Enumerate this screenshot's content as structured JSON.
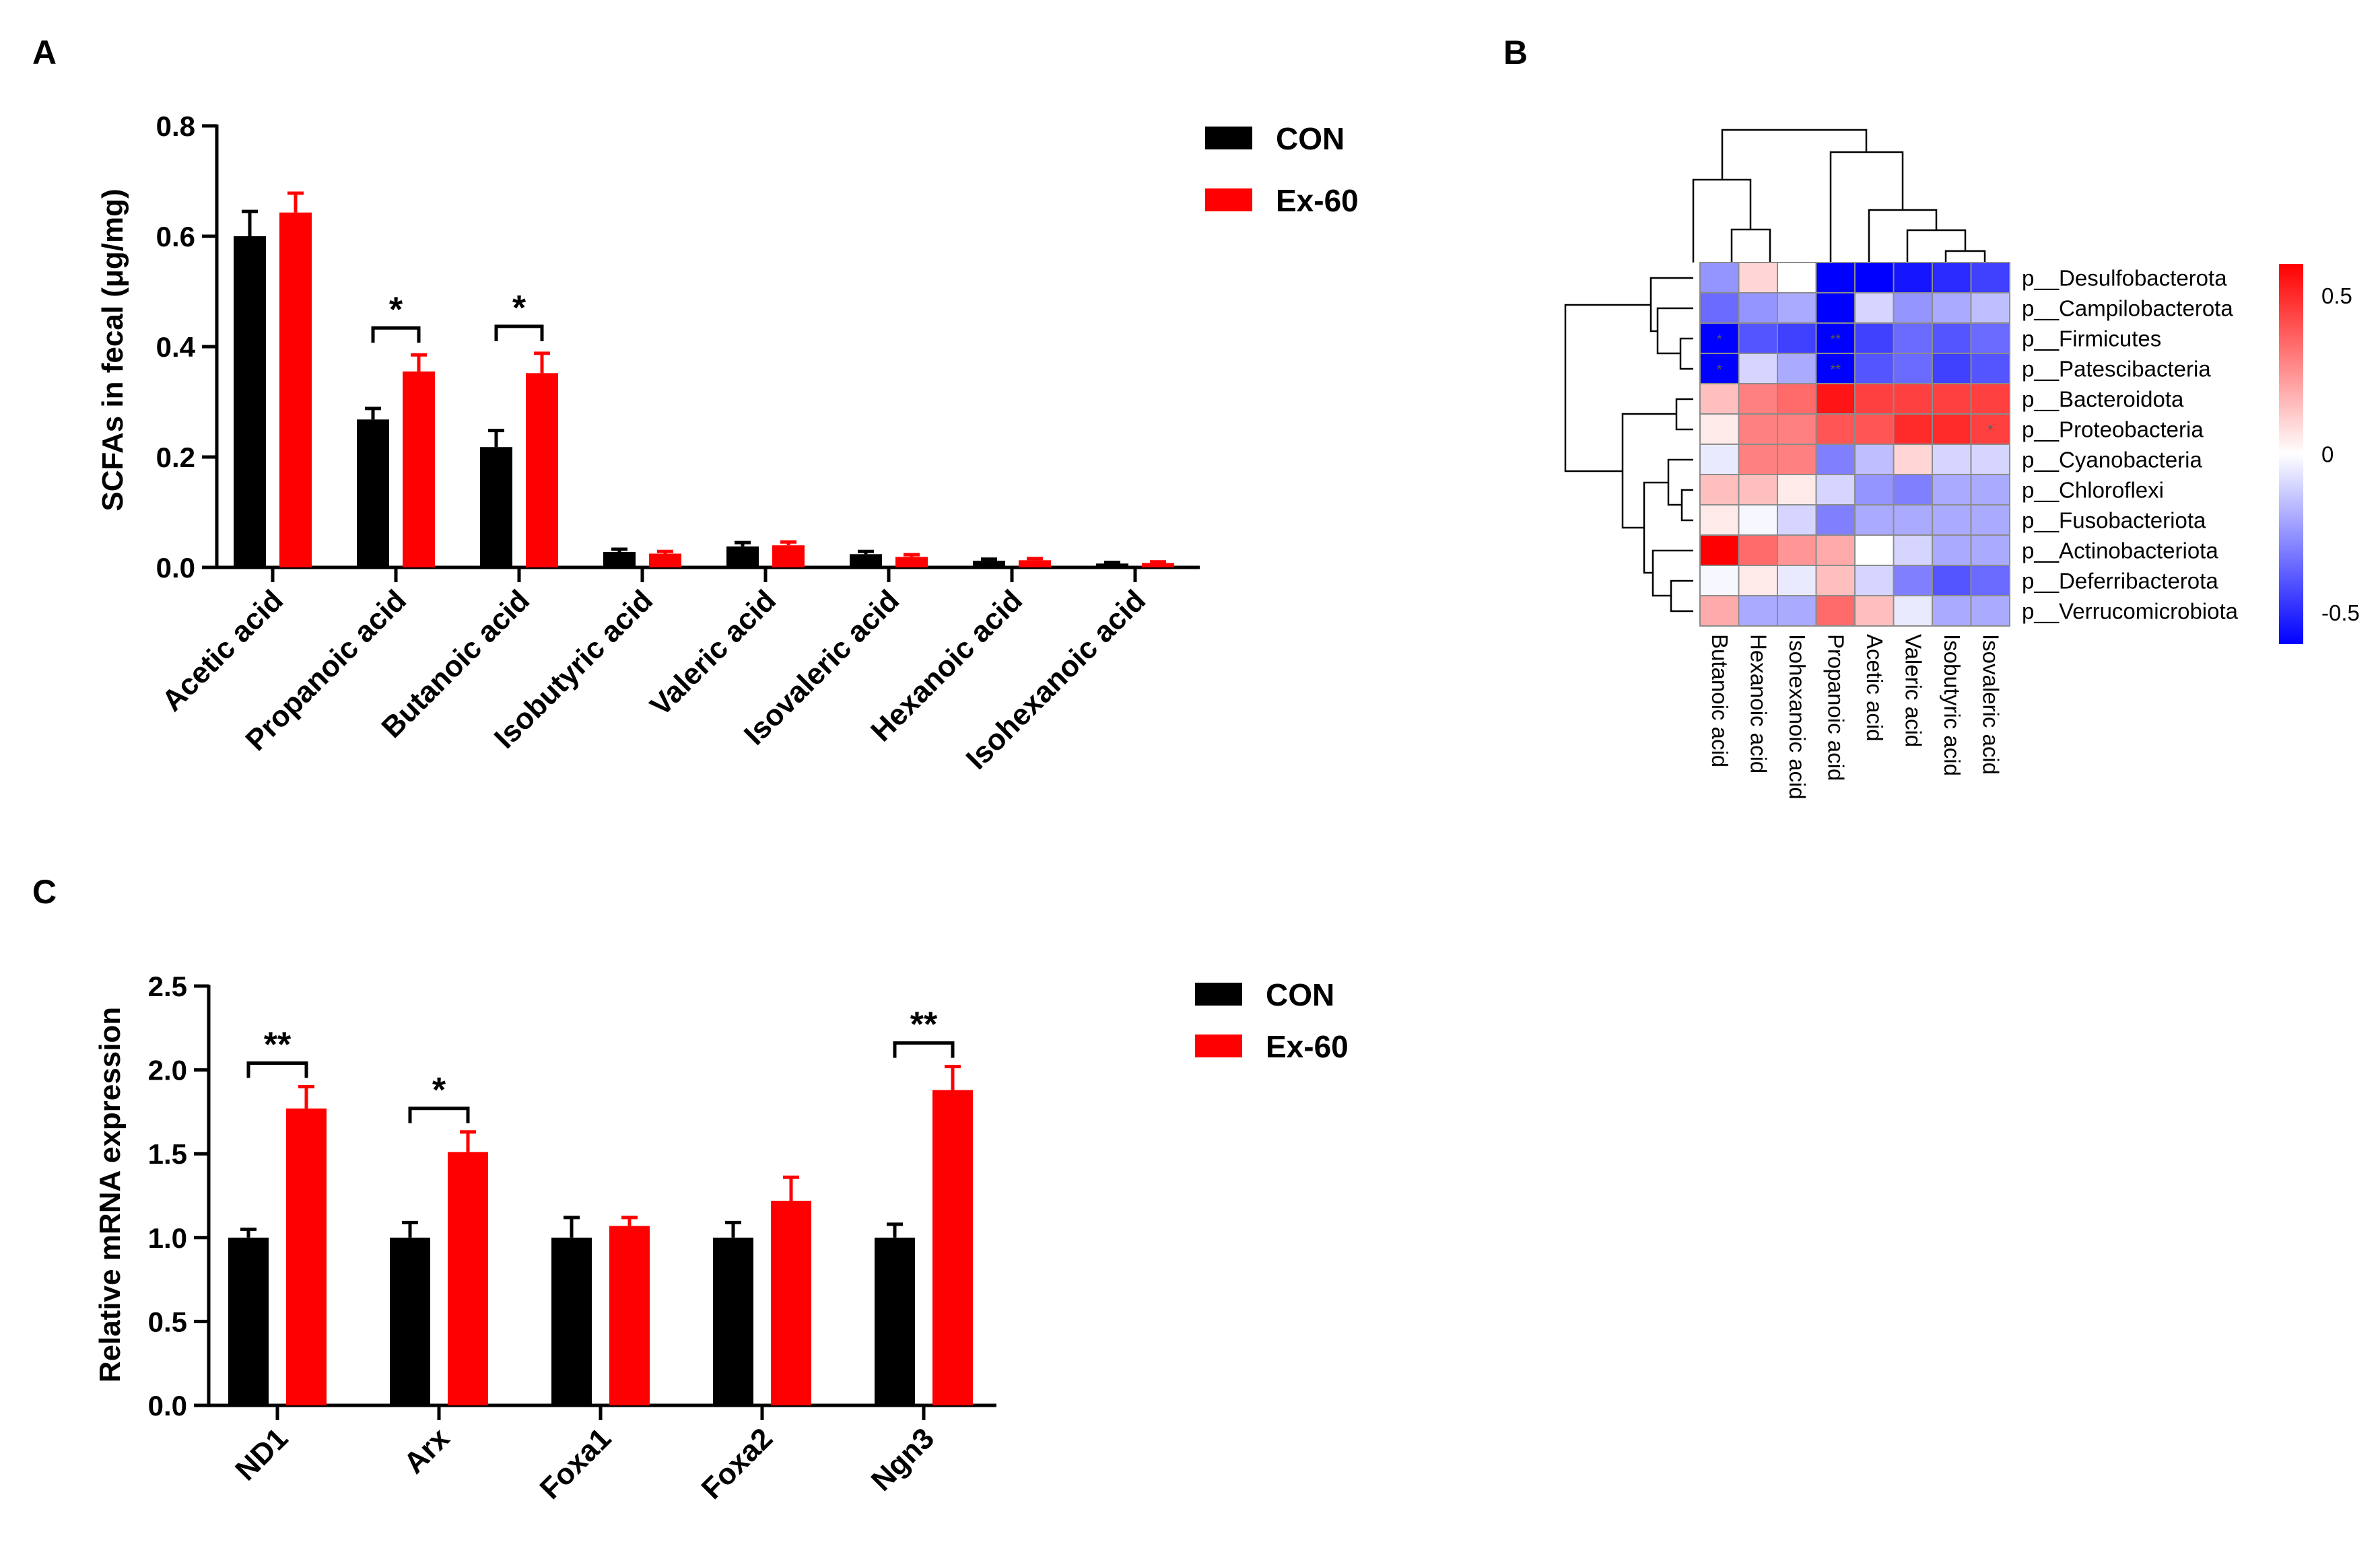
{
  "chart_data": [
    {
      "panel": "A",
      "type": "bar",
      "ylabel": "SCFAs in fecal (μg/mg)",
      "ylim": [
        0,
        0.8
      ],
      "yticks": [
        "0.0",
        "0.2",
        "0.4",
        "0.6",
        "0.8"
      ],
      "categories": [
        "Acetic acid",
        "Propanoic acid",
        "Butanoic acid",
        "Isobutyric acid",
        "Valeric acid",
        "Isovaleric acid",
        "Hexanoic acid",
        "Isohexanoic acid"
      ],
      "series": [
        {
          "name": "CON",
          "color": "#000000",
          "values": [
            0.6,
            0.268,
            0.218,
            0.028,
            0.038,
            0.024,
            0.012,
            0.007
          ],
          "errors": [
            0.045,
            0.02,
            0.03,
            0.005,
            0.007,
            0.005,
            0.003,
            0.002
          ]
        },
        {
          "name": "Ex-60",
          "color": "#ff0000",
          "values": [
            0.643,
            0.355,
            0.352,
            0.025,
            0.04,
            0.019,
            0.013,
            0.008
          ],
          "errors": [
            0.035,
            0.03,
            0.036,
            0.004,
            0.006,
            0.004,
            0.003,
            0.002
          ]
        }
      ],
      "significance": [
        {
          "category_index": 1,
          "label": "*"
        },
        {
          "category_index": 2,
          "label": "*"
        }
      ],
      "legend": [
        "CON",
        "Ex-60"
      ],
      "legend_position": "top-right"
    },
    {
      "panel": "B",
      "type": "heatmap",
      "columns": [
        "Butanoic acid",
        "Hexanoic acid",
        "Isohexanoic acid",
        "Propanoic acid",
        "Acetic acid",
        "Valeric acid",
        "Isobutyric acid",
        "Isovaleric acid"
      ],
      "rows": [
        "p__Desulfobacterota",
        "p__Campilobacterota",
        "p__Firmicutes",
        "p__Patescibacteria",
        "p__Bacteroidota",
        "p__Proteobacteria",
        "p__Cyanobacteria",
        "p__Chloroflexi",
        "p__Fusobacteriota",
        "p__Actinobacteriota",
        "p__Deferribacterota",
        "p__Verrucomicrobiota"
      ],
      "values": [
        [
          -0.25,
          0.1,
          0.0,
          -0.6,
          -0.6,
          -0.55,
          -0.5,
          -0.45
        ],
        [
          -0.35,
          -0.25,
          -0.2,
          -0.6,
          -0.1,
          -0.25,
          -0.2,
          -0.15
        ],
        [
          -0.62,
          -0.4,
          -0.45,
          -0.62,
          -0.45,
          -0.35,
          -0.4,
          -0.35
        ],
        [
          -0.62,
          -0.1,
          -0.2,
          -0.62,
          -0.4,
          -0.35,
          -0.45,
          -0.4
        ],
        [
          0.15,
          0.3,
          0.35,
          0.55,
          0.45,
          0.45,
          0.45,
          0.45
        ],
        [
          0.05,
          0.3,
          0.3,
          0.4,
          0.4,
          0.5,
          0.5,
          0.45
        ],
        [
          -0.05,
          0.3,
          0.3,
          -0.3,
          -0.15,
          0.1,
          -0.1,
          -0.1
        ],
        [
          0.15,
          0.15,
          0.05,
          -0.1,
          -0.25,
          -0.3,
          -0.2,
          -0.2
        ],
        [
          0.05,
          -0.02,
          -0.1,
          -0.3,
          -0.2,
          -0.2,
          -0.2,
          -0.2
        ],
        [
          0.6,
          0.35,
          0.25,
          0.2,
          0.0,
          -0.1,
          -0.2,
          -0.2
        ],
        [
          -0.02,
          0.05,
          -0.05,
          0.15,
          -0.1,
          -0.3,
          -0.4,
          -0.35
        ],
        [
          0.2,
          -0.2,
          -0.2,
          0.35,
          0.15,
          -0.05,
          -0.2,
          -0.2
        ]
      ],
      "significant_cells": [
        {
          "row": 2,
          "col": 0,
          "label": "*"
        },
        {
          "row": 2,
          "col": 3,
          "label": "**"
        },
        {
          "row": 3,
          "col": 0,
          "label": "*"
        },
        {
          "row": 3,
          "col": 3,
          "label": "**"
        },
        {
          "row": 5,
          "col": 7,
          "label": "*"
        }
      ],
      "colorbar": {
        "min": -0.6,
        "max": 0.6,
        "ticks": [
          {
            "value": 0.5,
            "label": "0.5"
          },
          {
            "value": 0,
            "label": "0"
          },
          {
            "value": -0.5,
            "label": "-0.5"
          }
        ],
        "low_color": "#0000ff",
        "mid_color": "#ffffff",
        "high_color": "#ff0000"
      }
    },
    {
      "panel": "C",
      "type": "bar",
      "ylabel": "Relative mRNA expression",
      "ylim": [
        0,
        2.5
      ],
      "yticks": [
        "0.0",
        "0.5",
        "1.0",
        "1.5",
        "2.0",
        "2.5"
      ],
      "categories": [
        "ND1",
        "Arx",
        "Foxa1",
        "Foxa2",
        "Ngn3"
      ],
      "series": [
        {
          "name": "CON",
          "color": "#000000",
          "values": [
            1.0,
            1.0,
            1.0,
            1.0,
            1.0
          ],
          "errors": [
            0.05,
            0.09,
            0.12,
            0.09,
            0.08
          ]
        },
        {
          "name": "Ex-60",
          "color": "#ff0000",
          "values": [
            1.77,
            1.51,
            1.07,
            1.22,
            1.88
          ],
          "errors": [
            0.13,
            0.12,
            0.05,
            0.14,
            0.14
          ]
        }
      ],
      "significance": [
        {
          "category_index": 0,
          "label": "**"
        },
        {
          "category_index": 1,
          "label": "*"
        },
        {
          "category_index": 4,
          "label": "**"
        }
      ],
      "legend": [
        "CON",
        "Ex-60"
      ],
      "legend_position": "top-right"
    }
  ]
}
